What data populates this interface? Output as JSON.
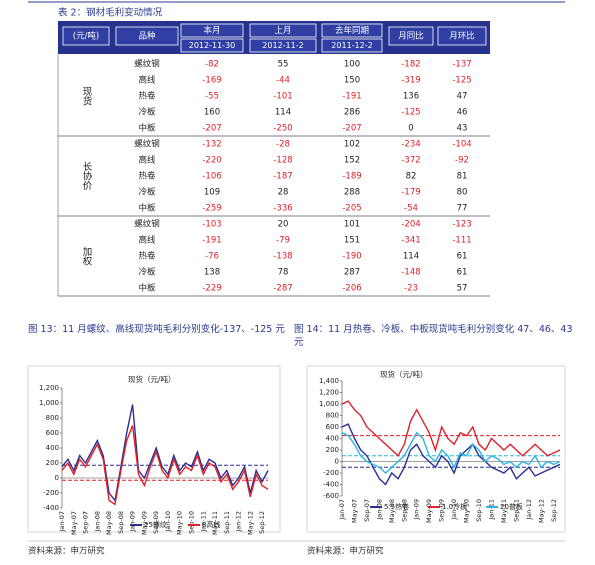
{
  "table": {
    "title": "表 2：钢材毛利变动情况",
    "headers": [
      "(元/吨)",
      "品种",
      "本月",
      "上月",
      "去年同期",
      "月同比",
      "月环比"
    ],
    "dates": [
      "2012-11-30",
      "2012-11-2",
      "2011-12-2"
    ],
    "groups": [
      {
        "label": "现货",
        "rows": [
          [
            "螺纹钢",
            -82,
            55,
            100,
            -182,
            -137
          ],
          [
            "高线",
            -169,
            -44,
            150,
            -319,
            -125
          ],
          [
            "热卷",
            -55,
            -101,
            -191,
            136,
            47
          ],
          [
            "冷板",
            160,
            114,
            286,
            -125,
            46
          ],
          [
            "中板",
            -207,
            -250,
            -207,
            0,
            43
          ]
        ]
      },
      {
        "label": "长协价",
        "rows": [
          [
            "螺纹钢",
            -132,
            -28,
            102,
            -234,
            -104
          ],
          [
            "高线",
            -220,
            -128,
            152,
            -372,
            -92
          ],
          [
            "热卷",
            -106,
            -187,
            -189,
            82,
            81
          ],
          [
            "冷板",
            109,
            28,
            288,
            -179,
            80
          ],
          [
            "中板",
            -259,
            -336,
            -205,
            -54,
            77
          ]
        ]
      },
      {
        "label": "加权",
        "rows": [
          [
            "螺纹钢",
            -103,
            20,
            101,
            -204,
            -123
          ],
          [
            "高线",
            -191,
            -79,
            151,
            -341,
            -111
          ],
          [
            "热卷",
            -76,
            -138,
            -190,
            114,
            61
          ],
          [
            "冷板",
            138,
            78,
            287,
            -148,
            61
          ],
          [
            "中板",
            -229,
            -287,
            -206,
            -23,
            57
          ]
        ]
      }
    ]
  },
  "figures": [
    {
      "caption": "图 13：11 月螺纹、高线现货吨毛利分别变化-137、-125 元",
      "chart": {
        "type": "line",
        "title": "现货（元/吨）",
        "categories": [
          "Jan-07",
          null,
          "May-07",
          null,
          "Sep-07",
          null,
          "Jan-08",
          null,
          "May-08",
          null,
          "Sep-08",
          null,
          "Jan-09",
          null,
          "May-09",
          null,
          "Sep-09",
          null,
          "Jan-10",
          null,
          "May-10",
          null,
          "Sep-10",
          null,
          "Jan-11",
          null,
          "May-11",
          null,
          "Sep-11",
          null,
          "Jan-12",
          null,
          "May-12",
          null,
          "Sep-12",
          null
        ],
        "series": [
          {
            "name": "25螺纹",
            "color": "#2b2f8f",
            "values": [
              150,
              250,
              100,
              300,
              200,
              350,
              500,
              300,
              -200,
              -300,
              150,
              600,
              980,
              100,
              0,
              200,
              400,
              150,
              50,
              300,
              100,
              200,
              150,
              350,
              100,
              250,
              200,
              0,
              100,
              -100,
              0,
              150,
              -200,
              100,
              -50,
              100
            ]
          },
          {
            "name": "8高线",
            "color": "#e0202a",
            "values": [
              100,
              200,
              50,
              250,
              150,
              300,
              450,
              250,
              -300,
              -350,
              100,
              500,
              700,
              50,
              -100,
              150,
              350,
              100,
              0,
              250,
              50,
              150,
              100,
              300,
              50,
              200,
              150,
              -50,
              50,
              -150,
              -50,
              100,
              -250,
              50,
              -100,
              -150
            ]
          }
        ],
        "ref_lines": [
          {
            "value": 170,
            "color": "#2b2f8f"
          },
          {
            "value": -30,
            "color": "#e0202a"
          }
        ],
        "ylim": [
          -400,
          1200
        ],
        "yticks": [
          {
            "value": 1200,
            "label": "1,200"
          },
          {
            "value": 1000,
            "label": "1,000"
          },
          800,
          600,
          400,
          200,
          0,
          -200,
          -400
        ]
      },
      "source": "资料来源：申万研究"
    },
    {
      "caption": "图 14：11 月热卷、冷板、中板现货吨毛利分别变化 47、46、43 元",
      "chart": {
        "type": "line",
        "title": "现货（元/吨）",
        "categories": [
          "Jan-07",
          null,
          "May-07",
          null,
          "Sep-07",
          null,
          "Jan-08",
          null,
          "May-08",
          null,
          "Sep-08",
          null,
          "Jan-09",
          null,
          "May-09",
          null,
          "Sep-09",
          null,
          "Jan-10",
          null,
          "May-10",
          null,
          "Sep-10",
          null,
          "Jan-11",
          null,
          "May-11",
          null,
          "Sep-11",
          null,
          "Jan-12",
          null,
          "May-12",
          null,
          "Sep-12",
          null
        ],
        "series": [
          {
            "name": "5.5热卷",
            "color": "#2b2f8f",
            "values": [
              600,
              650,
              400,
              200,
              100,
              -100,
              -300,
              -400,
              -200,
              -300,
              -100,
              200,
              300,
              100,
              0,
              -100,
              100,
              0,
              -200,
              100,
              200,
              300,
              100,
              0,
              -100,
              -150,
              -200,
              -100,
              -300,
              -200,
              -100,
              -250,
              -200,
              -150,
              -100,
              -50
            ]
          },
          {
            "name": "1.0冷板",
            "color": "#e0202a",
            "values": [
              1000,
              1050,
              900,
              800,
              600,
              500,
              400,
              300,
              200,
              100,
              300,
              700,
              900,
              700,
              500,
              200,
              600,
              400,
              300,
              500,
              450,
              600,
              300,
              200,
              400,
              300,
              200,
              300,
              200,
              100,
              200,
              300,
              200,
              100,
              150,
              200
            ]
          },
          {
            "name": "20普板",
            "color": "#29b6e6",
            "values": [
              500,
              450,
              300,
              100,
              0,
              -50,
              -100,
              -200,
              -100,
              0,
              100,
              300,
              500,
              400,
              100,
              0,
              200,
              100,
              -100,
              150,
              100,
              300,
              200,
              0,
              100,
              50,
              -50,
              0,
              -100,
              0,
              -50,
              100,
              -100,
              0,
              -50,
              0
            ]
          }
        ],
        "ref_lines": [
          {
            "value": 450,
            "color": "#e0202a"
          },
          {
            "value": 100,
            "color": "#29b6e6"
          },
          {
            "value": -100,
            "color": "#2b2f8f"
          }
        ],
        "ylim": [
          -600,
          1400
        ],
        "yticks": [
          {
            "value": 1400,
            "label": "1,400"
          },
          {
            "value": 1200,
            "label": "1,200"
          },
          {
            "value": 1000,
            "label": "1,000"
          },
          800,
          600,
          400,
          200,
          0,
          -200,
          -400,
          -600
        ]
      },
      "source": "资料来源：申万研究"
    }
  ]
}
